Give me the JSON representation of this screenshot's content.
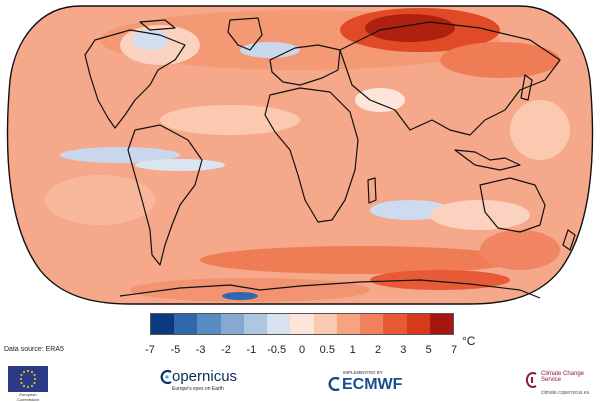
{
  "map": {
    "title": "",
    "projection": "robinson",
    "variable": "surface air temperature anomaly",
    "ocean_background": "#f6a88a"
  },
  "legend": {
    "ticks": [
      "-7",
      "-5",
      "-3",
      "-2",
      "-1",
      "-0.5",
      "0",
      "0.5",
      "1",
      "2",
      "3",
      "5",
      "7"
    ],
    "unit": "°C",
    "colors": [
      "#0b3a80",
      "#2f68ad",
      "#5a8cc4",
      "#86a9d3",
      "#aec6e2",
      "#d6e2f0",
      "#fde5da",
      "#fbc8b0",
      "#f7a382",
      "#f2805d",
      "#e85a36",
      "#d53b1b",
      "#a51810"
    ]
  },
  "source": {
    "label": "Data source: ERA5"
  },
  "logos": {
    "eu": {
      "text": "European Commission",
      "icon": "eu-flag-icon"
    },
    "copernicus": {
      "name": "opernicus",
      "tagline": "Europe's eyes on Earth",
      "icon": "copernicus-c-icon"
    },
    "ecmwf": {
      "implemented_by": "IMPLEMENTED BY",
      "name": "ECMWF",
      "icon": "ecmwf-mark-icon"
    },
    "c3s": {
      "name": "Climate Change Service",
      "url": "climate.copernicus.eu",
      "icon": "c3s-mark-icon"
    }
  }
}
